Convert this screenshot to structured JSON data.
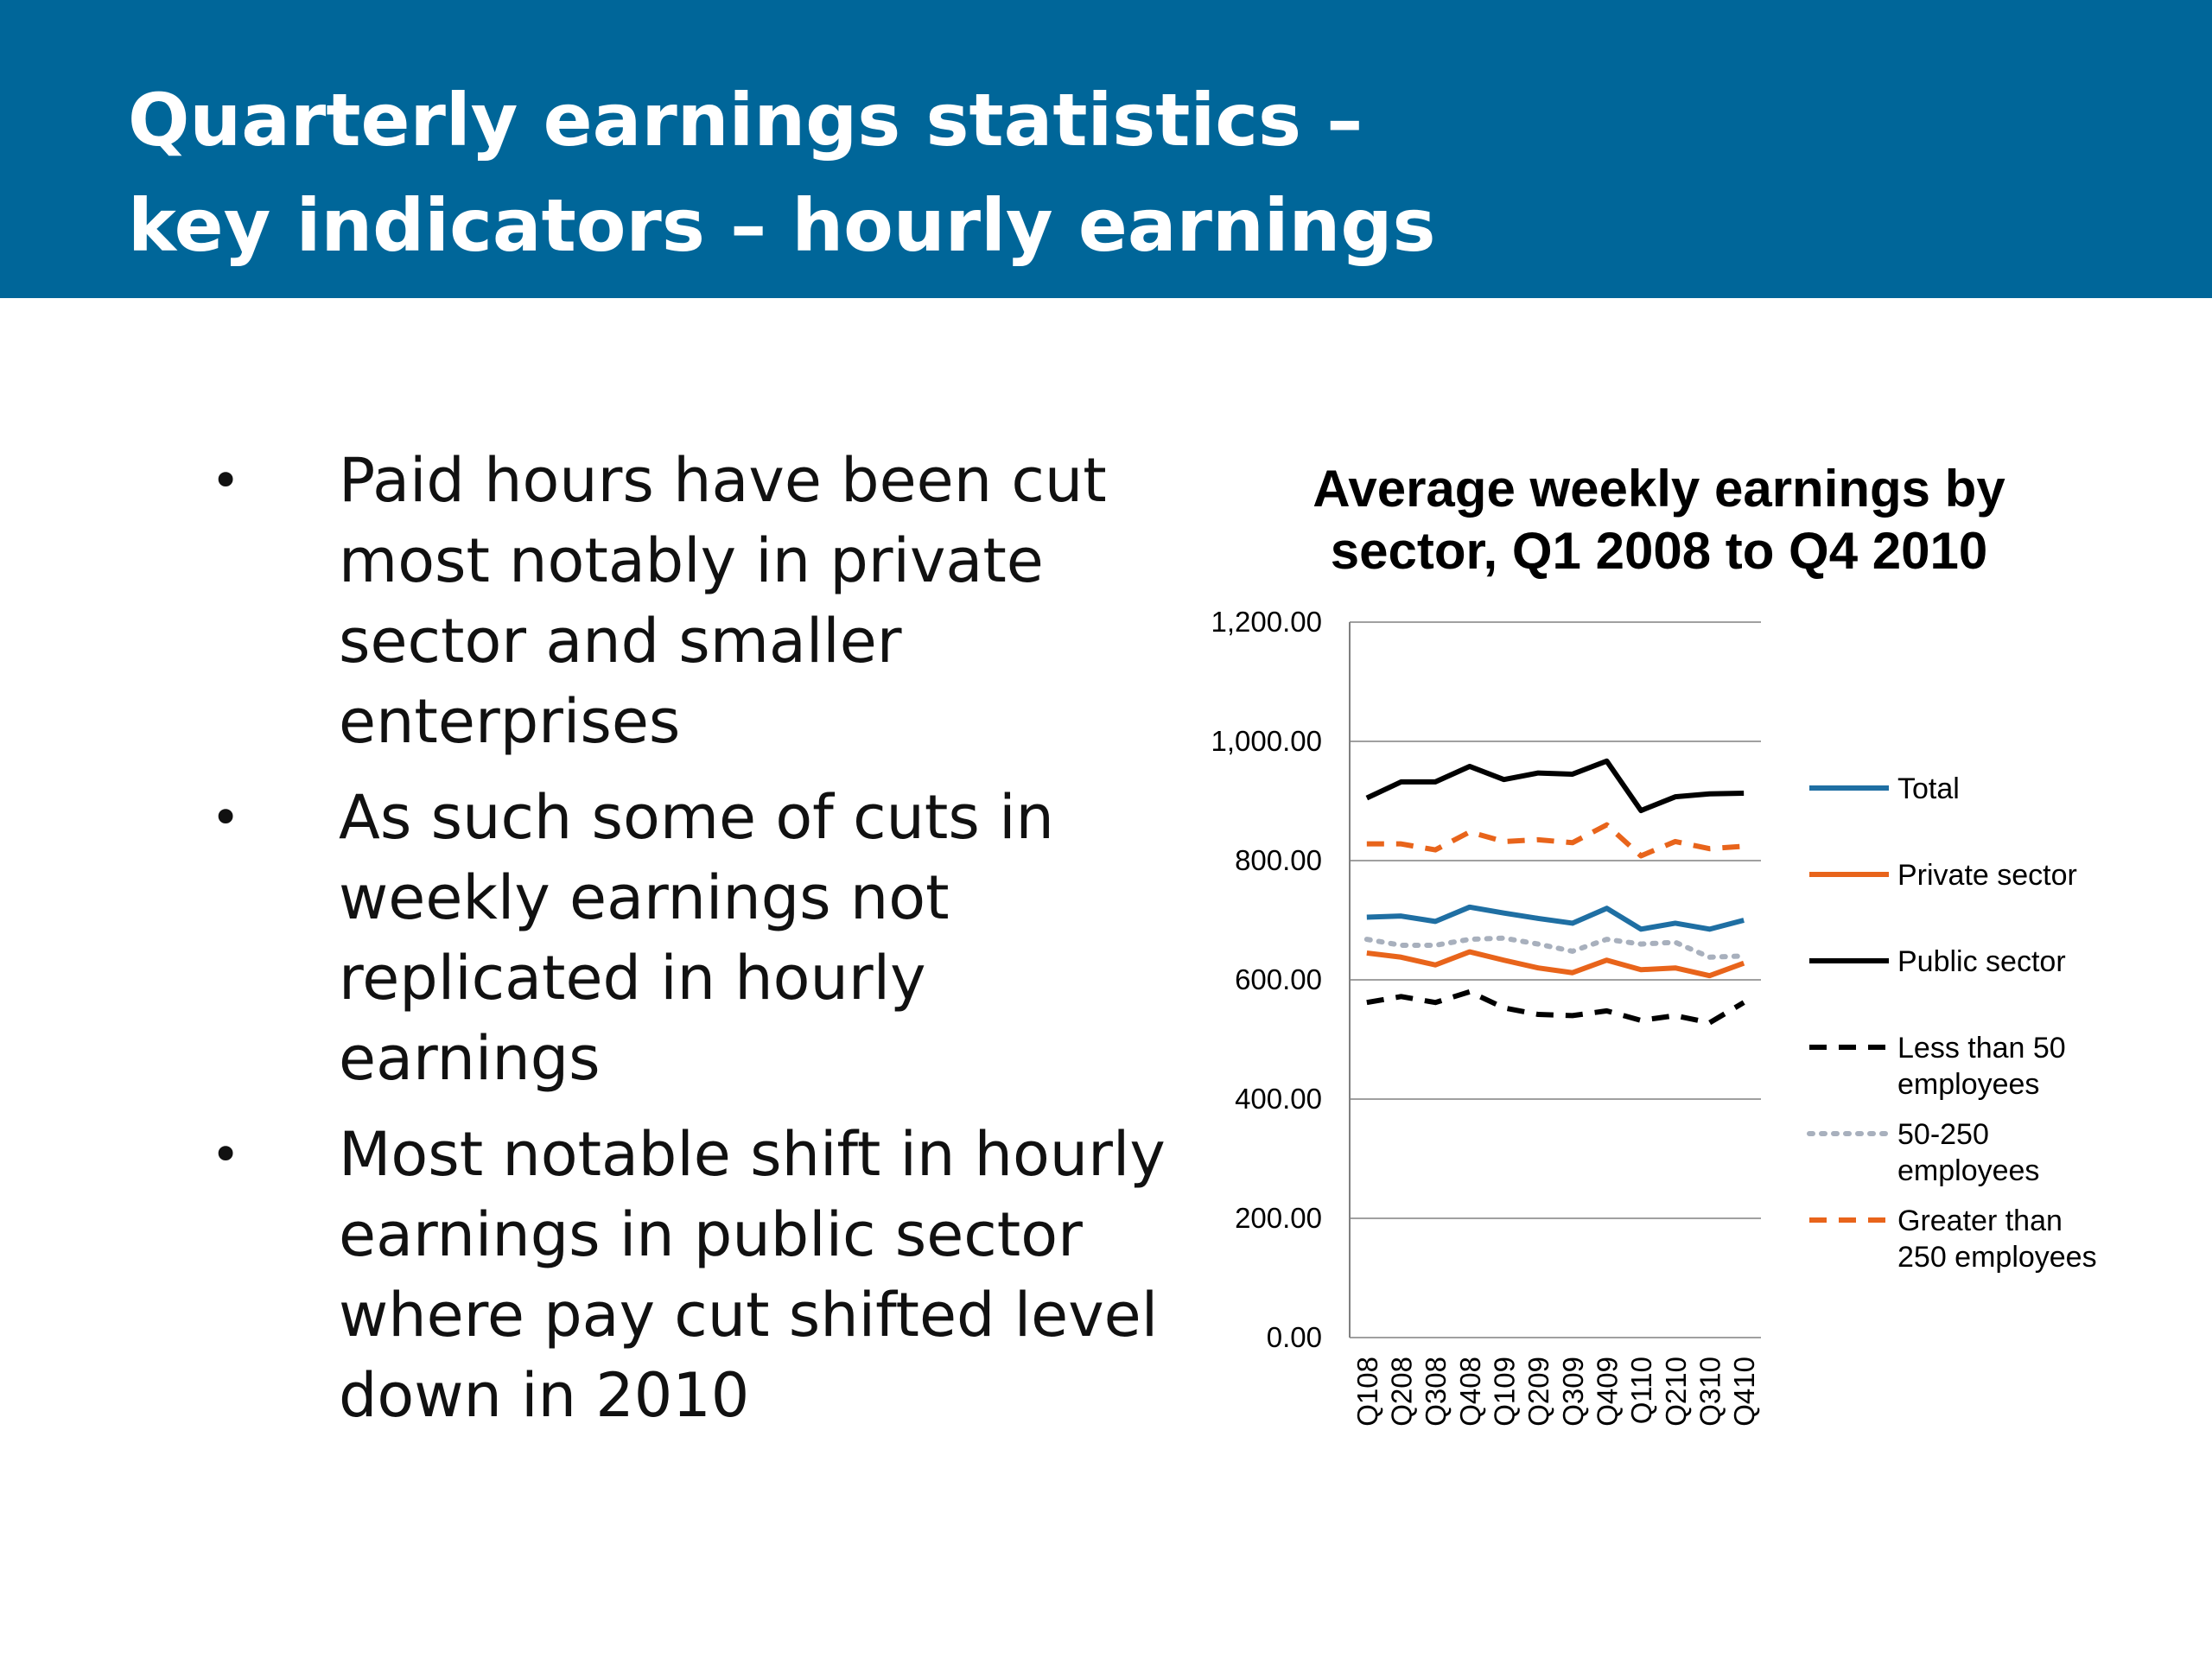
{
  "slide": {
    "title_line1": "Quarterly earnings statistics –",
    "title_line2": "key indicators – hourly earnings",
    "banner_color": "#006699"
  },
  "bullets": [
    "Paid hours have been cut most notably in private sector and smaller enterprises",
    "As such some of cuts in weekly earnings not replicated in hourly earnings",
    "Most notable shift in hourly earnings in public sector where pay cut shifted level down in 2010"
  ],
  "bullet_symbol": "•",
  "chart_data": {
    "type": "line",
    "title_line1": "Average weekly earnings by",
    "title_line2": "sector, Q1 2008 to Q4 2010",
    "categories": [
      "Q108",
      "Q208",
      "Q308",
      "Q408",
      "Q109",
      "Q209",
      "Q309",
      "Q409",
      "Q110",
      "Q210",
      "Q310",
      "Q410"
    ],
    "ylim": [
      0,
      1200
    ],
    "yticks": [
      0,
      200,
      400,
      600,
      800,
      1000,
      1200
    ],
    "ytick_labels": [
      "0.00",
      "200.00",
      "400.00",
      "600.00",
      "800.00",
      "1,000.00",
      "1,200.00"
    ],
    "grid": true,
    "legend": "right",
    "series": [
      {
        "name": "Total",
        "legend_label": [
          "Total"
        ],
        "color": "#1f6fa3",
        "style": "solid",
        "values": [
          705,
          707,
          698,
          722,
          712,
          703,
          695,
          720,
          685,
          695,
          685,
          700
        ]
      },
      {
        "name": "Private sector",
        "legend_label": [
          "Private sector"
        ],
        "color": "#e8641b",
        "style": "solid",
        "values": [
          645,
          638,
          625,
          647,
          633,
          620,
          612,
          633,
          617,
          620,
          607,
          628
        ]
      },
      {
        "name": "Public sector",
        "legend_label": [
          "Public sector"
        ],
        "color": "#000000",
        "style": "solid",
        "values": [
          905,
          932,
          932,
          958,
          936,
          947,
          945,
          967,
          884,
          907,
          912,
          913
        ]
      },
      {
        "name": "Less than 50 employees",
        "legend_label": [
          "Less than 50",
          "employees"
        ],
        "color": "#000000",
        "style": "dash",
        "values": [
          562,
          572,
          562,
          580,
          553,
          542,
          540,
          548,
          532,
          540,
          528,
          562
        ]
      },
      {
        "name": "50-250 employees",
        "legend_label": [
          "50-250",
          "employees"
        ],
        "color": "#a8b0bd",
        "style": "dot",
        "values": [
          668,
          658,
          658,
          668,
          670,
          660,
          648,
          668,
          660,
          663,
          638,
          640
        ]
      },
      {
        "name": "Greater than 250 employees",
        "legend_label": [
          "Greater than",
          "250 employees"
        ],
        "color": "#e8641b",
        "style": "dash",
        "values": [
          828,
          828,
          818,
          848,
          832,
          835,
          830,
          860,
          808,
          832,
          820,
          824
        ]
      }
    ]
  }
}
